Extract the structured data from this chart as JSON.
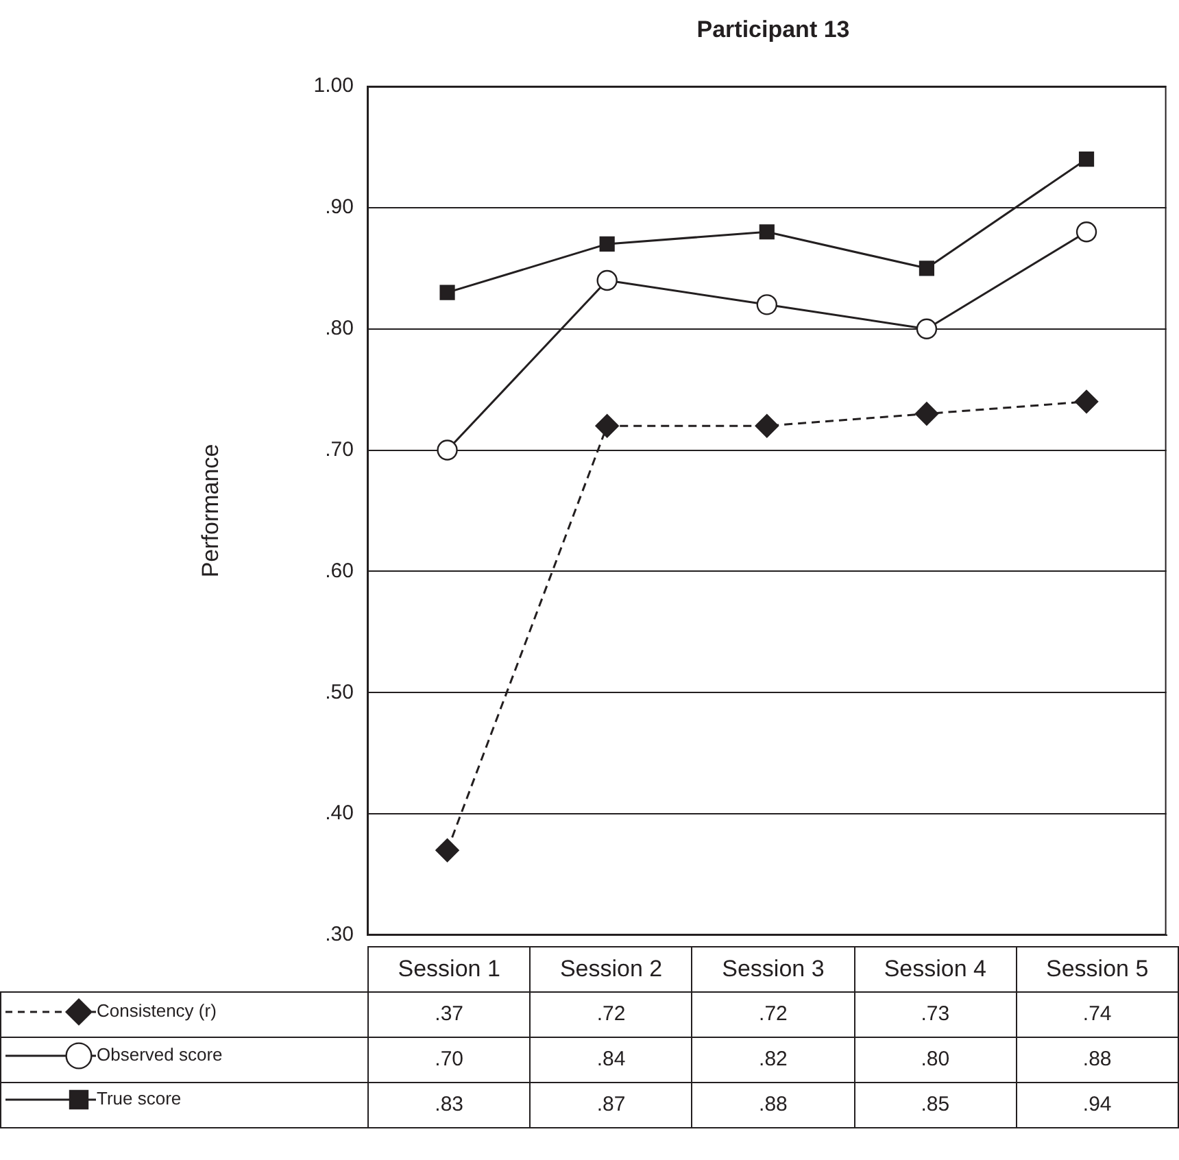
{
  "chart_data": {
    "type": "line",
    "title": "Participant 13",
    "ylabel": "Performance",
    "categories": [
      "Session 1",
      "Session 2",
      "Session 3",
      "Session 4",
      "Session 5"
    ],
    "series": [
      {
        "name": "Consistency (r)",
        "color": "#231f20",
        "marker": "diamond",
        "line_style": "dashed",
        "values": [
          0.37,
          0.72,
          0.72,
          0.73,
          0.74
        ],
        "value_labels": [
          ".37",
          ".72",
          ".72",
          ".73",
          ".74"
        ]
      },
      {
        "name": "Observed score",
        "color": "#231f20",
        "marker": "circle",
        "line_style": "solid",
        "values": [
          0.7,
          0.84,
          0.82,
          0.8,
          0.88
        ],
        "value_labels": [
          ".70",
          ".84",
          ".82",
          ".80",
          ".88"
        ]
      },
      {
        "name": "True score",
        "color": "#231f20",
        "marker": "square",
        "line_style": "solid",
        "values": [
          0.83,
          0.87,
          0.88,
          0.85,
          0.94
        ],
        "value_labels": [
          ".83",
          ".87",
          ".88",
          ".85",
          ".94"
        ]
      }
    ],
    "ylim": [
      0.3,
      1.0
    ],
    "yticks": [
      {
        "value": 0.3,
        "label": ".30"
      },
      {
        "value": 0.4,
        "label": ".40"
      },
      {
        "value": 0.5,
        "label": ".50"
      },
      {
        "value": 0.6,
        "label": ".60"
      },
      {
        "value": 0.7,
        "label": ".70"
      },
      {
        "value": 0.8,
        "label": ".80"
      },
      {
        "value": 0.9,
        "label": ".90"
      },
      {
        "value": 1.0,
        "label": "1.00"
      }
    ],
    "grid": "y",
    "legend": "bottom left",
    "tick_labels": "y"
  }
}
